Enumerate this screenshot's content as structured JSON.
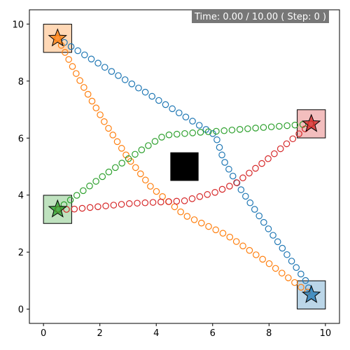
{
  "status": {
    "time_label": "Time: 0.00 / 10.00 ( Step: 0  )"
  },
  "colors": {
    "blue": "#1f77b4",
    "orange": "#ff7f0e",
    "green": "#2ca02c",
    "red": "#d62728",
    "obstacle": "#000000"
  },
  "chart_data": {
    "type": "scatter",
    "title": "",
    "xlabel": "",
    "ylabel": "",
    "xlim": [
      -0.5,
      10.5
    ],
    "ylim": [
      -0.5,
      10.5
    ],
    "xticks": [
      0,
      2,
      4,
      6,
      8,
      10
    ],
    "yticks": [
      0,
      2,
      4,
      6,
      8,
      10
    ],
    "grid": false,
    "obstacle": {
      "x": [
        4.5,
        5.5
      ],
      "y": [
        4.5,
        5.5
      ]
    },
    "series": [
      {
        "color": "#1f77b4",
        "start": [
          0.5,
          9.5
        ],
        "goal": [
          9.5,
          0.5
        ],
        "path": [
          [
            0.5,
            9.5
          ],
          [
            6.1,
            6.1
          ],
          [
            6.4,
            5.2
          ],
          [
            7.0,
            4.2
          ],
          [
            7.7,
            3.2
          ],
          [
            8.5,
            2.1
          ],
          [
            9.3,
            1.0
          ],
          [
            9.5,
            0.5
          ]
        ]
      },
      {
        "color": "#ff7f0e",
        "start": [
          0.5,
          9.5
        ],
        "goal": [
          9.5,
          0.5
        ],
        "path": [
          [
            0.5,
            9.5
          ],
          [
            1.3,
            8.0
          ],
          [
            2.2,
            6.5
          ],
          [
            3.0,
            5.3
          ],
          [
            3.8,
            4.3
          ],
          [
            5.0,
            3.3
          ],
          [
            6.5,
            2.6
          ],
          [
            8.0,
            1.6
          ],
          [
            9.5,
            0.5
          ]
        ]
      },
      {
        "color": "#2ca02c",
        "start": [
          0.5,
          3.5
        ],
        "goal": [
          9.5,
          6.5
        ],
        "path": [
          [
            0.5,
            3.5
          ],
          [
            2.3,
            4.8
          ],
          [
            3.5,
            5.6
          ],
          [
            4.3,
            6.1
          ],
          [
            5.5,
            6.2
          ],
          [
            6.3,
            6.25
          ],
          [
            7.5,
            6.35
          ],
          [
            9.5,
            6.5
          ]
        ]
      },
      {
        "color": "#d62728",
        "start": [
          9.5,
          6.5
        ],
        "goal": [
          0.5,
          3.5
        ],
        "path": [
          [
            9.5,
            6.5
          ],
          [
            8.0,
            5.3
          ],
          [
            6.8,
            4.4
          ],
          [
            6.1,
            4.1
          ],
          [
            5.0,
            3.8
          ],
          [
            3.0,
            3.7
          ],
          [
            1.0,
            3.5
          ],
          [
            0.5,
            3.5
          ]
        ]
      }
    ],
    "start_squares": [
      {
        "center": [
          0.5,
          9.5
        ],
        "color": "#ff7f0e"
      },
      {
        "center": [
          9.5,
          6.5
        ],
        "color": "#d62728"
      },
      {
        "center": [
          0.5,
          3.5
        ],
        "color": "#2ca02c"
      },
      {
        "center": [
          9.5,
          0.5
        ],
        "color": "#1f77b4"
      }
    ],
    "stars": [
      {
        "at": [
          0.5,
          9.5
        ],
        "color": "#ff7f0e"
      },
      {
        "at": [
          9.5,
          6.5
        ],
        "color": "#d62728"
      },
      {
        "at": [
          0.5,
          3.5
        ],
        "color": "#2ca02c"
      },
      {
        "at": [
          9.5,
          0.5
        ],
        "color": "#1f77b4"
      }
    ]
  }
}
